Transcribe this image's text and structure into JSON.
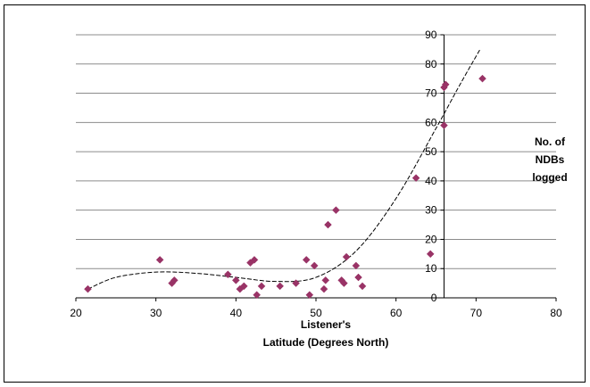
{
  "chart_data": {
    "type": "scatter",
    "title": "",
    "xlabel_lines": [
      "Listener's",
      "Latitude (Degrees North)"
    ],
    "ylabel_lines": [
      "No. of",
      "NDBs",
      "logged"
    ],
    "xlim": [
      20,
      80
    ],
    "ylim": [
      0,
      90
    ],
    "x_ticks": [
      20,
      30,
      40,
      50,
      60,
      70,
      80
    ],
    "y_ticks": [
      0,
      10,
      20,
      30,
      40,
      50,
      60,
      70,
      80,
      90
    ],
    "y_axis_crosses_x": 66,
    "grid": "horizontal",
    "marker": "diamond",
    "marker_color": "#993366",
    "trendline": {
      "type": "polynomial",
      "style": "dashed",
      "color": "#000000"
    },
    "points": [
      {
        "x": 21.5,
        "y": 3
      },
      {
        "x": 30.5,
        "y": 13
      },
      {
        "x": 32.0,
        "y": 5
      },
      {
        "x": 32.3,
        "y": 6
      },
      {
        "x": 39.0,
        "y": 8
      },
      {
        "x": 40.0,
        "y": 6
      },
      {
        "x": 40.5,
        "y": 3
      },
      {
        "x": 41.0,
        "y": 4
      },
      {
        "x": 41.8,
        "y": 12
      },
      {
        "x": 42.3,
        "y": 13
      },
      {
        "x": 42.6,
        "y": 1
      },
      {
        "x": 43.2,
        "y": 4
      },
      {
        "x": 45.5,
        "y": 4
      },
      {
        "x": 47.5,
        "y": 5
      },
      {
        "x": 48.8,
        "y": 13
      },
      {
        "x": 49.2,
        "y": 1
      },
      {
        "x": 49.8,
        "y": 11
      },
      {
        "x": 51.0,
        "y": 3
      },
      {
        "x": 51.2,
        "y": 6
      },
      {
        "x": 51.5,
        "y": 25
      },
      {
        "x": 52.5,
        "y": 30
      },
      {
        "x": 53.2,
        "y": 6
      },
      {
        "x": 53.5,
        "y": 5
      },
      {
        "x": 53.8,
        "y": 14
      },
      {
        "x": 55.0,
        "y": 11
      },
      {
        "x": 55.3,
        "y": 7
      },
      {
        "x": 55.8,
        "y": 4
      },
      {
        "x": 62.5,
        "y": 41
      },
      {
        "x": 64.3,
        "y": 15
      },
      {
        "x": 66.0,
        "y": 59
      },
      {
        "x": 66.0,
        "y": 72
      },
      {
        "x": 66.2,
        "y": 73
      },
      {
        "x": 70.8,
        "y": 75
      }
    ],
    "trend_curve": [
      {
        "x": 21.5,
        "y": 3
      },
      {
        "x": 25,
        "y": 7
      },
      {
        "x": 30,
        "y": 8.8
      },
      {
        "x": 35,
        "y": 8.4
      },
      {
        "x": 40,
        "y": 7
      },
      {
        "x": 45,
        "y": 5.6
      },
      {
        "x": 50,
        "y": 7
      },
      {
        "x": 55,
        "y": 16
      },
      {
        "x": 60,
        "y": 34
      },
      {
        "x": 65,
        "y": 58
      },
      {
        "x": 68,
        "y": 73
      },
      {
        "x": 70.5,
        "y": 85
      }
    ]
  }
}
